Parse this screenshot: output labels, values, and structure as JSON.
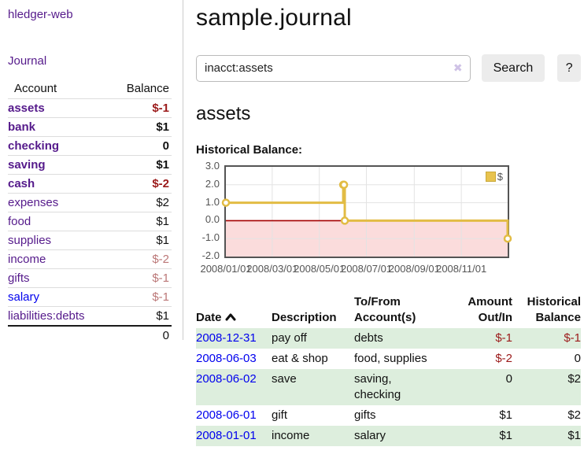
{
  "app": {
    "title": "hledger-web"
  },
  "sidebar": {
    "journal_link": "Journal",
    "table": {
      "headers": {
        "account": "Account",
        "balance": "Balance"
      },
      "rows": [
        {
          "name": "assets",
          "balance": "$-1"
        },
        {
          "name": "bank",
          "balance": "$1"
        },
        {
          "name": "checking",
          "balance": "0"
        },
        {
          "name": "saving",
          "balance": "$1"
        },
        {
          "name": "cash",
          "balance": "$-2"
        },
        {
          "name": "expenses",
          "balance": "$2"
        },
        {
          "name": "food",
          "balance": "$1"
        },
        {
          "name": "supplies",
          "balance": "$1"
        },
        {
          "name": "income",
          "balance": "$-2"
        },
        {
          "name": "gifts",
          "balance": "$-1"
        },
        {
          "name": "salary",
          "balance": "$-1"
        },
        {
          "name": "liabilities:debts",
          "balance": "$1"
        }
      ],
      "total": "0"
    }
  },
  "header": {
    "title": "sample.journal"
  },
  "search": {
    "value": "inacct:assets",
    "clear_icon": "✖",
    "button_label": "Search",
    "help_label": "?"
  },
  "register": {
    "account_title": "assets",
    "chart_label": "Historical Balance:",
    "table": {
      "headers": {
        "date": "Date",
        "description": "Description",
        "accounts": "To/From Account(s)",
        "amount": "Amount Out/In",
        "balance": "Historical Balance"
      },
      "rows": [
        {
          "date": "2008-12-31",
          "description": "pay off",
          "accounts": "debts",
          "amount": "$-1",
          "balance": "$-1"
        },
        {
          "date": "2008-06-03",
          "description": "eat & shop",
          "accounts": "food, supplies",
          "amount": "$-2",
          "balance": "0"
        },
        {
          "date": "2008-06-02",
          "description": "save",
          "accounts": "saving, checking",
          "amount": "0",
          "balance": "$2"
        },
        {
          "date": "2008-06-01",
          "description": "gift",
          "accounts": "gifts",
          "amount": "$1",
          "balance": "$2"
        },
        {
          "date": "2008-01-01",
          "description": "income",
          "accounts": "salary",
          "amount": "$1",
          "balance": "$1"
        }
      ]
    }
  },
  "chart_data": {
    "type": "line",
    "title": "Historical Balance of assets",
    "step": true,
    "legend": "$",
    "legend_position": "top-right",
    "grid": true,
    "x_range": [
      "2008-01-01",
      "2008-12-31"
    ],
    "ylim": [
      -2,
      3
    ],
    "yticks": [
      "3.0",
      "2.0",
      "1.0",
      "0.0",
      "-1.0",
      "-2.0"
    ],
    "xticks": [
      "2008/01/01",
      "2008/03/01",
      "2008/05/01",
      "2008/07/01",
      "2008/09/01",
      "2008/11/01"
    ],
    "series": [
      {
        "name": "$",
        "points": [
          [
            "2008-01-01",
            1
          ],
          [
            "2008-06-01",
            2
          ],
          [
            "2008-06-02",
            2
          ],
          [
            "2008-06-03",
            0
          ],
          [
            "2008-12-31",
            -1
          ]
        ]
      }
    ],
    "colors": {
      "line": "#e2bc44",
      "marker_fill": "#ffffff",
      "negative_fill": "#fbdcdc",
      "zero_line": "#a40000",
      "grid": "#e3e3e3"
    }
  }
}
